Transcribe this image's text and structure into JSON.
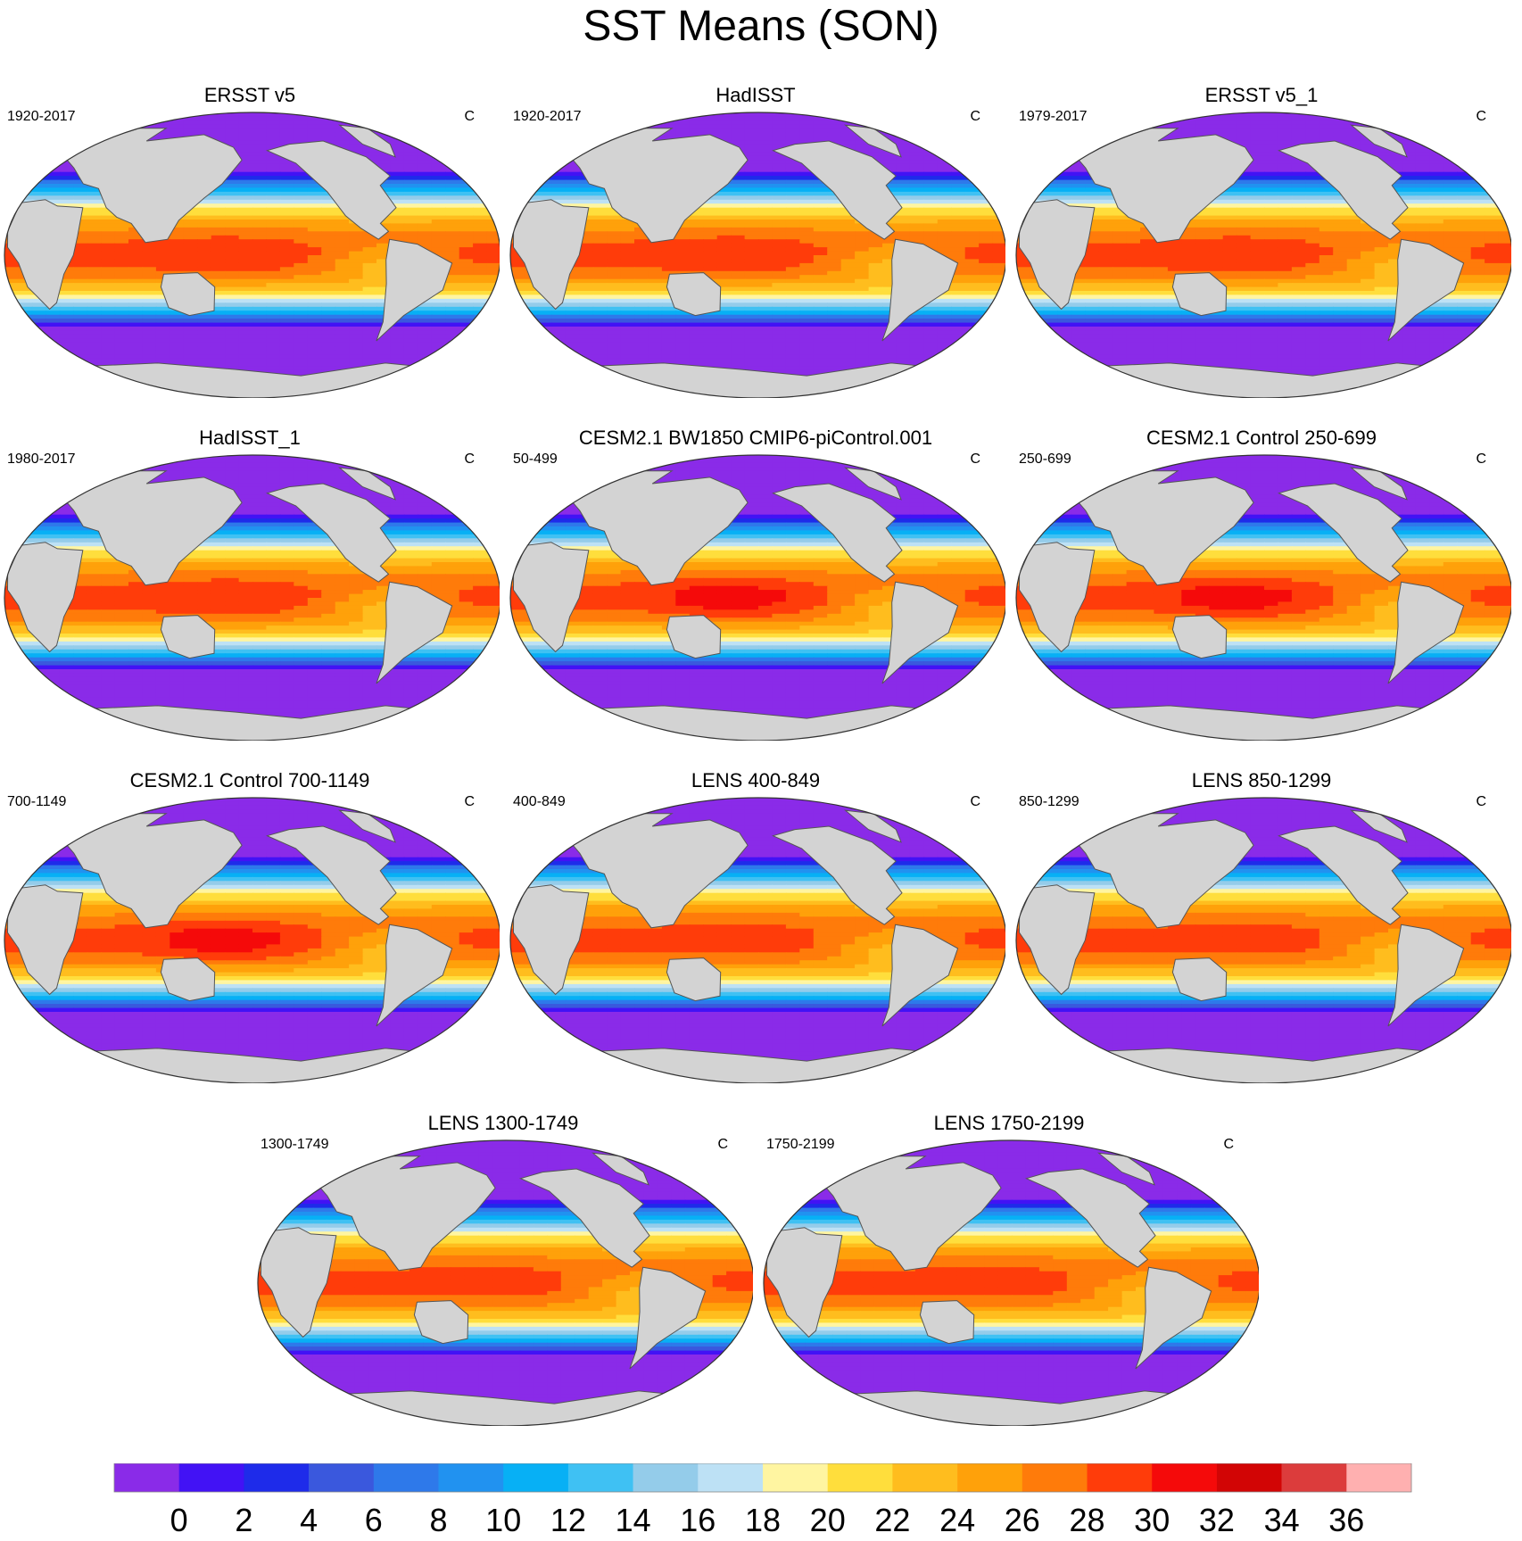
{
  "chart_data": {
    "type": "heatmap",
    "title": "SST Means (SON)",
    "projection": "Robinson global map, Pacific-centered",
    "units": "C",
    "colorbar": {
      "levels": [
        0,
        2,
        4,
        6,
        8,
        10,
        12,
        14,
        16,
        18,
        20,
        22,
        24,
        26,
        28,
        30,
        32,
        34,
        36
      ],
      "tick_labels": [
        "0",
        "2",
        "4",
        "6",
        "8",
        "10",
        "12",
        "14",
        "16",
        "18",
        "20",
        "22",
        "24",
        "26",
        "28",
        "30",
        "32",
        "34",
        "36"
      ],
      "colors": [
        "#8a2be8",
        "#4212f5",
        "#1e2bea",
        "#3a58dd",
        "#2e79ea",
        "#2192f0",
        "#07b0f5",
        "#3fc1f3",
        "#94ccea",
        "#bde1f5",
        "#fff5a1",
        "#ffde3c",
        "#ffbd1e",
        "#ffa10a",
        "#ff7b0a",
        "#ff3c0a",
        "#f50a0a",
        "#d20505",
        "#dc3c3c",
        "#ffb0b0"
      ]
    },
    "panels": [
      {
        "title": "ERSST v5",
        "period": "1920-2017",
        "units": "C",
        "warm_pool_max_c": 29.5
      },
      {
        "title": "HadISST",
        "period": "1920-2017",
        "units": "C",
        "warm_pool_max_c": 29.5
      },
      {
        "title": "ERSST v5_1",
        "period": "1979-2017",
        "units": "C",
        "warm_pool_max_c": 29.5
      },
      {
        "title": "HadISST_1",
        "period": "1980-2017",
        "units": "C",
        "warm_pool_max_c": 29.5
      },
      {
        "title": "CESM2.1 BW1850 CMIP6-piControl.001",
        "period": "50-499",
        "units": "C",
        "warm_pool_max_c": 30.5
      },
      {
        "title": "CESM2.1 Control 250-699",
        "period": "250-699",
        "units": "C",
        "warm_pool_max_c": 30.5
      },
      {
        "title": "CESM2.1 Control 700-1149",
        "period": "700-1149",
        "units": "C",
        "warm_pool_max_c": 30.5
      },
      {
        "title": "LENS 400-849",
        "period": "400-849",
        "units": "C",
        "warm_pool_max_c": 29
      },
      {
        "title": "LENS 850-1299",
        "period": "850-1299",
        "units": "C",
        "warm_pool_max_c": 29
      },
      {
        "title": "LENS 1300-1749",
        "period": "1300-1749",
        "units": "C",
        "warm_pool_max_c": 29
      },
      {
        "title": "LENS 1750-2199",
        "period": "1750-2199",
        "units": "C",
        "warm_pool_max_c": 29
      }
    ]
  }
}
